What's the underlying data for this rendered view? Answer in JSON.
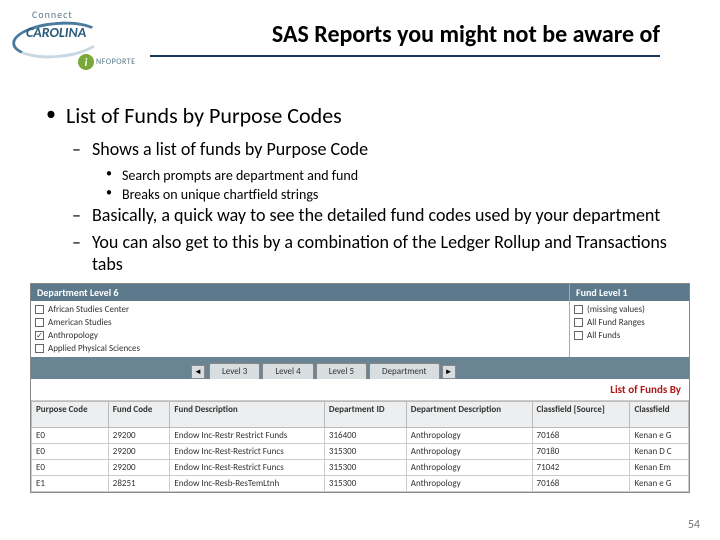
{
  "logo": {
    "connect": "Connect",
    "carolina": "CAROLINA",
    "info_letter": "i",
    "info_text": "NFOPORTE"
  },
  "title": "SAS Reports you might not be aware of",
  "bullets": {
    "b1": "List of Funds by Purpose Codes",
    "b2a": "Shows a list of funds by Purpose Code",
    "b3a": "Search prompts are department and fund",
    "b3b": "Breaks on unique chartfield strings",
    "b2b": "Basically, a quick way to see the detailed fund codes used by your department",
    "b2c": "You can also get to this by a combination of the Ledger Rollup and Transactions tabs"
  },
  "screenshot": {
    "left_header": "Department Level 6",
    "right_header": "Fund Level 1",
    "left_items": [
      {
        "label": "African Studies Center",
        "checked": false
      },
      {
        "label": "American Studies",
        "checked": false
      },
      {
        "label": "Anthropology",
        "checked": true
      },
      {
        "label": "Applied Physical Sciences",
        "checked": false
      }
    ],
    "right_items": [
      {
        "label": "(missing values)",
        "checked": false
      },
      {
        "label": "All Fund Ranges",
        "checked": false
      },
      {
        "label": "All Funds",
        "checked": false
      }
    ],
    "tabs": [
      "Level 3",
      "Level 4",
      "Level 5",
      "Department"
    ],
    "scroll_left": "◄",
    "scroll_right": "►",
    "report_title": "List of Funds By",
    "table": {
      "headers": [
        "Purpose Code",
        "Fund Code",
        "Fund Description",
        "Department ID",
        "Department Description",
        "Classfield [Source]",
        "Classfield"
      ],
      "rows": [
        [
          "E0",
          "29200",
          "Endow Inc-Restr Restrict Funds",
          "316400",
          "Anthropology",
          "70168",
          "Kenan e G"
        ],
        [
          "E0",
          "29200",
          "Endow Inc-Rest-Restrict Funcs",
          "315300",
          "Anthropology",
          "70180",
          "Kenan D C"
        ],
        [
          "E0",
          "29200",
          "Endow Inc-Rest-Restrict Funcs",
          "315300",
          "Anthropology",
          "71042",
          "Kenan Em"
        ],
        [
          "E1",
          "28251",
          "Endow Inc-Resb-ResTemLtnh",
          "315300",
          "Anthropology",
          "70168",
          "Kenan e G"
        ]
      ]
    }
  },
  "page_number": "54"
}
